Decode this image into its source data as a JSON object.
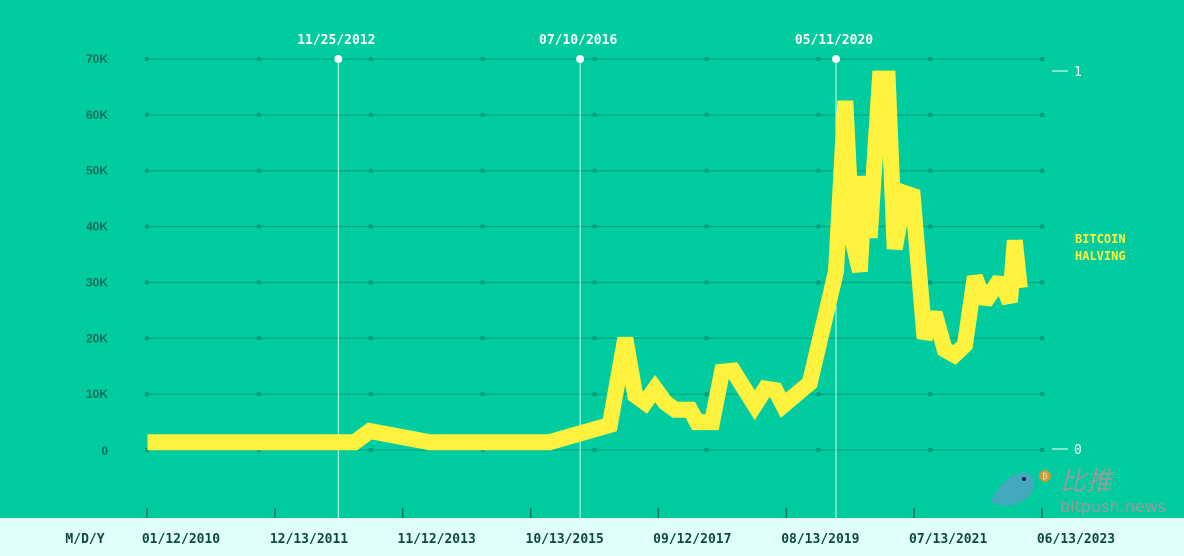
{
  "chart_data": {
    "type": "line",
    "title": "",
    "xlabel": "M/D/Y",
    "ylabel": "",
    "ylim": [
      0,
      70000
    ],
    "xlim": [
      "2010-01-12",
      "2023-06-13"
    ],
    "grid": true,
    "y_ticks": [
      {
        "value": 0,
        "label": "0"
      },
      {
        "value": 10000,
        "label": "10K"
      },
      {
        "value": 20000,
        "label": "20K"
      },
      {
        "value": 30000,
        "label": "30K"
      },
      {
        "value": 40000,
        "label": "40K"
      },
      {
        "value": 50000,
        "label": "50K"
      },
      {
        "value": 60000,
        "label": "60K"
      },
      {
        "value": 70000,
        "label": "70K"
      }
    ],
    "x_ticks": [
      {
        "date": "2010-01-12",
        "label": "01/12/2010"
      },
      {
        "date": "2011-12-13",
        "label": "12/13/2011"
      },
      {
        "date": "2013-11-12",
        "label": "11/12/2013"
      },
      {
        "date": "2015-10-13",
        "label": "10/13/2015"
      },
      {
        "date": "2017-09-12",
        "label": "09/12/2017"
      },
      {
        "date": "2019-08-13",
        "label": "08/13/2019"
      },
      {
        "date": "2021-07-13",
        "label": "07/13/2021"
      },
      {
        "date": "2023-06-13",
        "label": "06/13/2023"
      }
    ],
    "right_axis": {
      "ticks": [
        {
          "value": 0,
          "label": "0"
        },
        {
          "value": 1,
          "label": "1"
        }
      ],
      "label": "BITCOIN HALVING"
    },
    "halvings": [
      {
        "date": "2012-11-25",
        "label": "11/25/2012"
      },
      {
        "date": "2016-07-10",
        "label": "07/10/2016"
      },
      {
        "date": "2020-05-11",
        "label": "05/11/2020"
      }
    ],
    "series": [
      {
        "color": "#FFF23F",
        "points": [
          [
            "2010-01-15",
            1400
          ],
          [
            "2013-02-23",
            1400
          ],
          [
            "2013-05-15",
            3400
          ],
          [
            "2014-04-08",
            1400
          ],
          [
            "2016-01-25",
            1400
          ],
          [
            "2016-12-20",
            4500
          ],
          [
            "2017-03-14",
            20000
          ],
          [
            "2017-05-07",
            9800
          ],
          [
            "2017-07-01",
            8500
          ],
          [
            "2017-08-25",
            11000
          ],
          [
            "2017-10-19",
            8500
          ],
          [
            "2017-12-13",
            7200
          ],
          [
            "2018-03-04",
            7200
          ],
          [
            "2018-04-11",
            5000
          ],
          [
            "2018-07-02",
            5000
          ],
          [
            "2018-08-26",
            14000
          ],
          [
            "2018-10-26",
            14200
          ],
          [
            "2019-02-23",
            8000
          ],
          [
            "2019-04-20",
            11000
          ],
          [
            "2019-06-14",
            10700
          ],
          [
            "2019-07-27",
            8000
          ],
          [
            "2019-12-20",
            12000
          ],
          [
            "2020-05-11",
            32000
          ],
          [
            "2020-07-01",
            62500
          ],
          [
            "2020-08-08",
            38000
          ],
          [
            "2020-09-20",
            32000
          ],
          [
            "2020-10-16",
            49000
          ],
          [
            "2020-11-13",
            38000
          ],
          [
            "2021-01-08",
            66500
          ],
          [
            "2021-02-20",
            66500
          ],
          [
            "2021-03-28",
            36000
          ],
          [
            "2021-05-22",
            46000
          ],
          [
            "2021-07-05",
            45500
          ],
          [
            "2021-09-09",
            20000
          ],
          [
            "2021-11-03",
            24500
          ],
          [
            "2021-12-28",
            18000
          ],
          [
            "2022-02-21",
            17000
          ],
          [
            "2022-04-17",
            18800
          ],
          [
            "2022-06-10",
            31000
          ],
          [
            "2022-08-04",
            26500
          ],
          [
            "2022-10-26",
            30500
          ],
          [
            "2022-12-20",
            26500
          ],
          [
            "2023-01-16",
            37500
          ],
          [
            "2023-02-13",
            29000
          ]
        ]
      }
    ]
  },
  "colors": {
    "background": "#00CC9F",
    "axis_band": "#E0FFF8",
    "grid": "#00A883",
    "line": "#FFF23F",
    "halving": "#FFFFFF"
  },
  "watermark": {
    "logo_text": "比推",
    "site": "bitpush.news",
    "icon": "bird-bitcoin-icon"
  }
}
